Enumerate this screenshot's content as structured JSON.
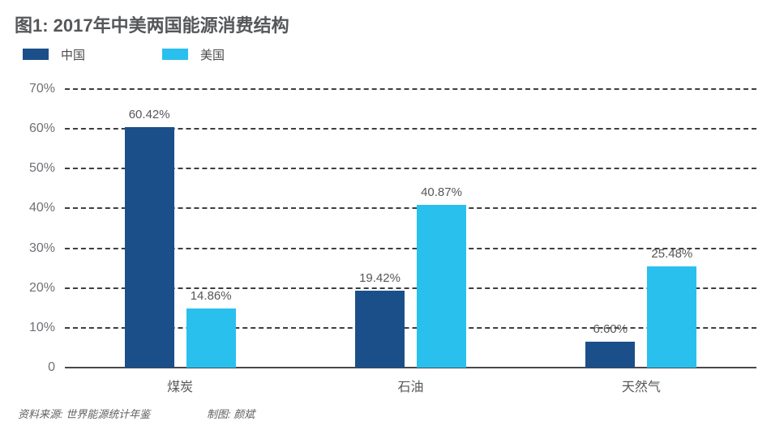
{
  "title": "图1: 2017年中美两国能源消费结构",
  "footer": {
    "source": "资料来源: 世界能源统计年鉴",
    "credit": "制图: 颜斌"
  },
  "chart_data": {
    "type": "bar",
    "title": "图1: 2017年中美两国能源消费结构",
    "categories": [
      "煤炭",
      "石油",
      "天然气"
    ],
    "series": [
      {
        "name": "中国",
        "color": "#1b4f8a",
        "values": [
          60.42,
          19.42,
          6.6
        ]
      },
      {
        "name": "美国",
        "color": "#29c0ee",
        "values": [
          14.86,
          40.87,
          25.48
        ]
      }
    ],
    "value_labels": [
      [
        "60.42%",
        "19.42%",
        "6.60%"
      ],
      [
        "14.86%",
        "40.87%",
        "25.48%"
      ]
    ],
    "xlabel": "",
    "ylabel": "",
    "ylim": [
      0,
      70
    ],
    "y_ticks": [
      0,
      10,
      20,
      30,
      40,
      50,
      60,
      70
    ],
    "y_tick_labels": [
      "0",
      "10%",
      "20%",
      "30%",
      "40%",
      "50%",
      "60%",
      "70%"
    ],
    "grid": "horizontal-dashed",
    "legend_position": "top-left"
  }
}
